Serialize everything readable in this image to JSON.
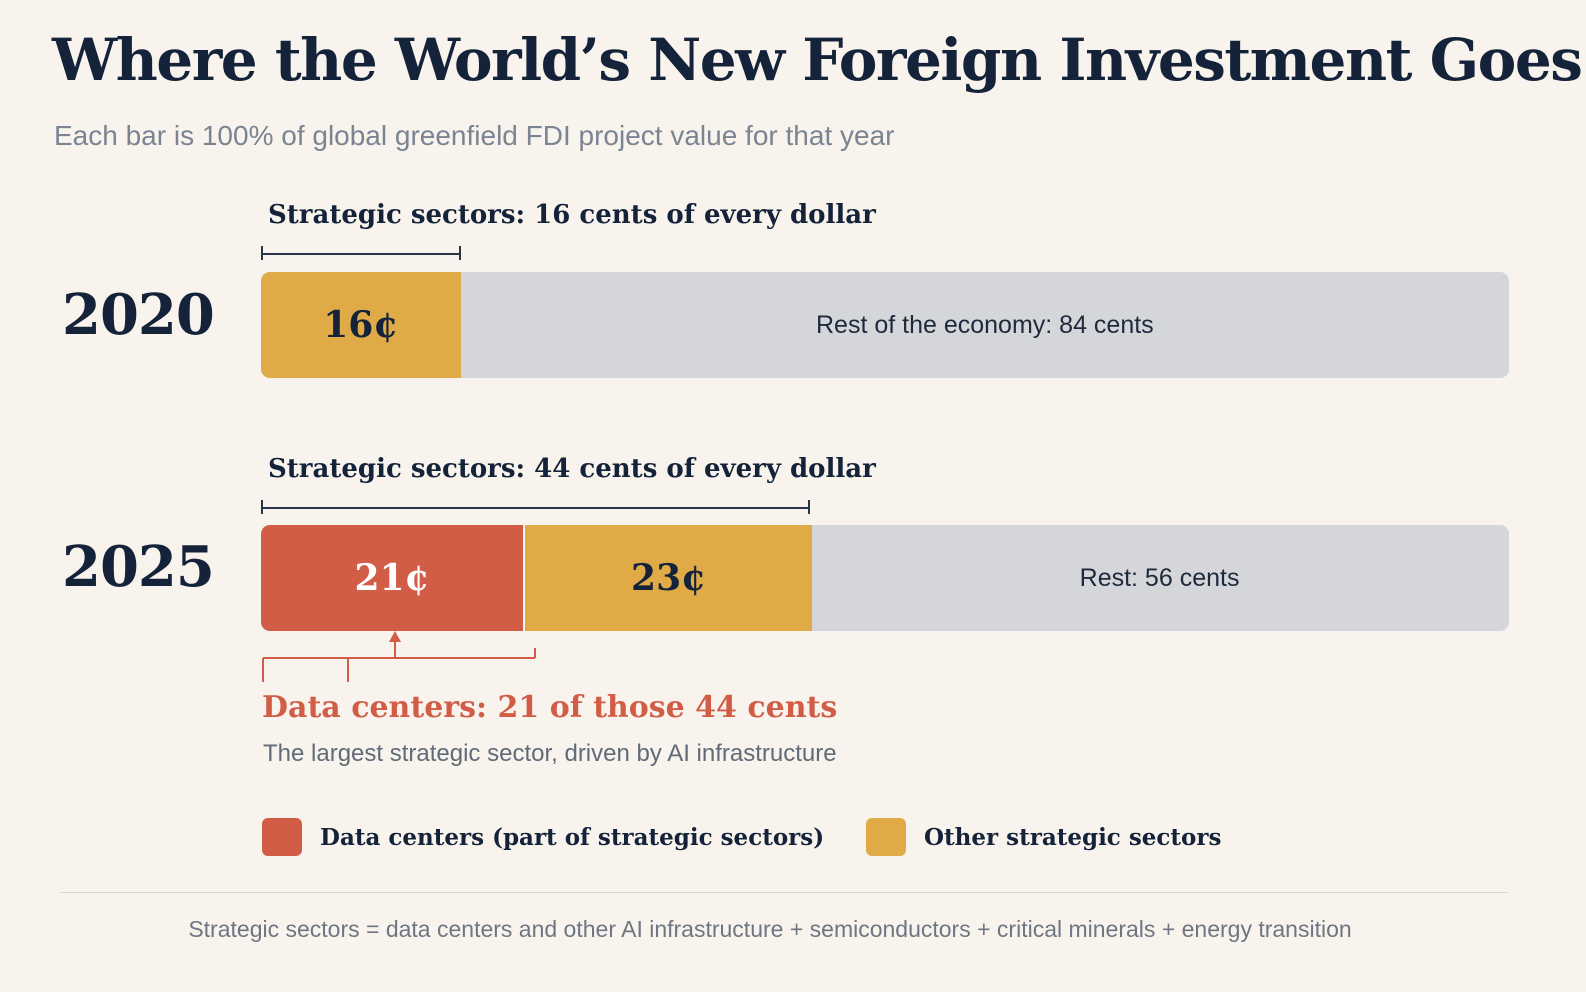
{
  "header": {
    "title": "Where the World’s New Foreign Investment Goes",
    "subtitle": "Each bar is 100% of global greenfield FDI project value for that year"
  },
  "colors": {
    "data_centers": "#d25d47",
    "other_strategic": "#e0aa47",
    "rest": "#d4d6da",
    "background": "#f8f4ed"
  },
  "chart_data": {
    "type": "bar",
    "orientation": "horizontal",
    "stacked": true,
    "unit": "cents of every dollar",
    "categories": [
      "2020",
      "2025"
    ],
    "series": [
      {
        "name": "Data centers (part of strategic sectors)",
        "values": [
          0,
          21
        ]
      },
      {
        "name": "Other strategic sectors",
        "values": [
          16,
          23
        ]
      },
      {
        "values": [
          84,
          56
        ]
      }
    ],
    "xlim": [
      0,
      100
    ],
    "grid": false,
    "legend": "bottom",
    "rows": [
      {
        "year": "2020",
        "bracket_label": "Strategic sectors: 16 cents of every dollar",
        "strategic_total": 16,
        "segments": [
          {
            "kind": "other_strategic",
            "value": 16,
            "label": "16¢"
          }
        ],
        "rest": {
          "value": 84,
          "label": "Rest of the economy: 84 cents"
        }
      },
      {
        "year": "2025",
        "bracket_label": "Strategic sectors: 44 cents of every dollar",
        "strategic_total": 44,
        "segments": [
          {
            "kind": "data_centers",
            "value": 21,
            "label": "21¢"
          },
          {
            "kind": "other_strategic",
            "value": 23,
            "label": "23¢"
          }
        ],
        "rest": {
          "value": 56,
          "label": "Rest: 56 cents"
        }
      }
    ]
  },
  "annotation": {
    "title": "Data centers: 21 of those 44 cents",
    "subtitle": "The largest strategic sector, driven by AI infrastructure"
  },
  "legend": {
    "items": [
      {
        "label": "Data centers (part of strategic sectors)",
        "color": "#d25d47"
      },
      {
        "label": "Other strategic sectors",
        "color": "#e0aa47"
      }
    ]
  },
  "footnote": "Strategic sectors = data centers and other AI infrastructure + semiconductors + critical minerals + energy transition"
}
